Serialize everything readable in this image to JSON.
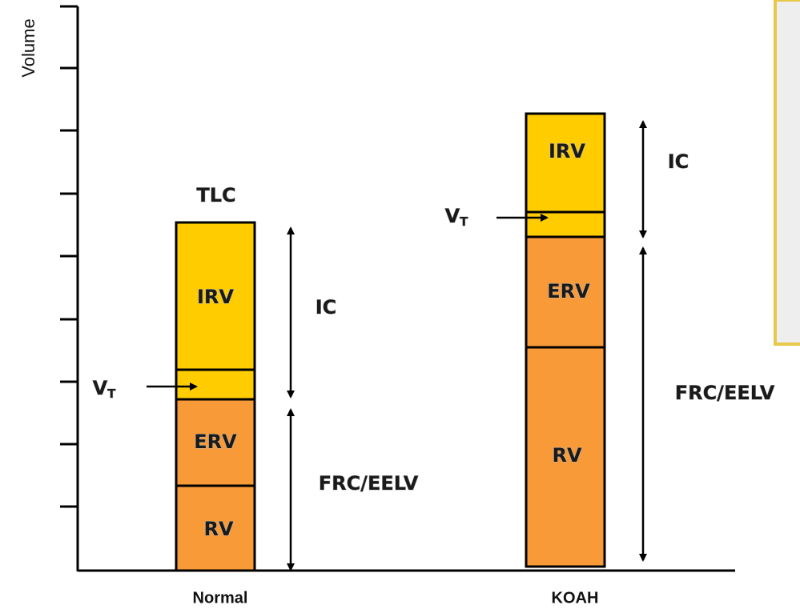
{
  "axis": {
    "label": "Volume"
  },
  "normal": {
    "label": "Normal",
    "top_label": "TLC",
    "segments": [
      "IRV",
      "ERV",
      "RV"
    ],
    "tidal": {
      "main": "V",
      "sub": "T"
    },
    "ic": "IC",
    "frc": "FRC/EELV"
  },
  "koah": {
    "label": "KOAH",
    "segments": [
      "IRV",
      "ERV",
      "RV"
    ],
    "tidal": {
      "main": "V",
      "sub": "T"
    },
    "ic": "IC",
    "frc": "FRC/EELV"
  }
}
